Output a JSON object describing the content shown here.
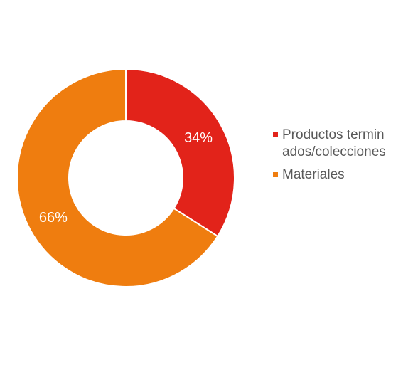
{
  "chart_data": {
    "type": "pie",
    "donut": true,
    "categories": [
      "Productos terminados/colecciones",
      "Materiales"
    ],
    "values": [
      34,
      66
    ],
    "data_labels": [
      "34%",
      "66%"
    ],
    "colors": [
      "#e2231a",
      "#ef7d0f"
    ],
    "title": "",
    "legend_placement": "right"
  }
}
